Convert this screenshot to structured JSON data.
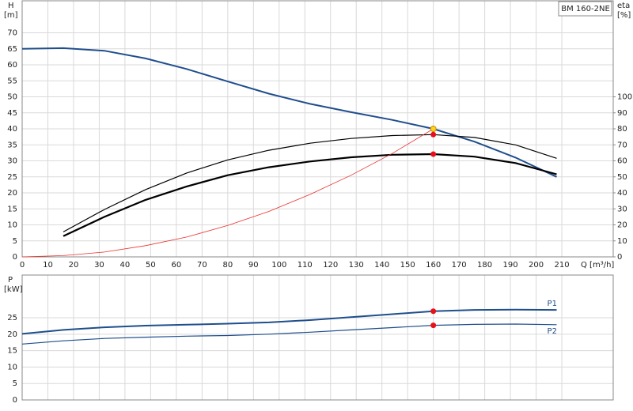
{
  "chart_data": [
    {
      "type": "line",
      "y_label": "H",
      "y_unit": "[m]",
      "y2_label": "eta",
      "y2_unit": "[%]",
      "x_label": "Q [m³/h]",
      "annotation": "BM 160-2NE",
      "xlim": [
        0,
        230
      ],
      "xticks": [
        0,
        10,
        20,
        30,
        40,
        50,
        60,
        70,
        80,
        90,
        100,
        110,
        120,
        130,
        140,
        150,
        160,
        170,
        180,
        190,
        200,
        210
      ],
      "ylim": [
        0,
        80
      ],
      "yticks": [
        0,
        5,
        10,
        15,
        20,
        25,
        30,
        35,
        40,
        45,
        50,
        55,
        60,
        65,
        70
      ],
      "y2lim": [
        0,
        160
      ],
      "y2ticks": [
        0,
        10,
        20,
        30,
        40,
        50,
        60,
        70,
        80,
        90,
        100
      ],
      "grid": true,
      "series": [
        {
          "color": "#1f4e8c",
          "width": 2,
          "x": [
            0,
            16,
            32,
            48,
            64,
            80,
            96,
            112,
            128,
            144,
            160,
            176,
            192,
            208
          ],
          "values": [
            65,
            65.2,
            64.4,
            62,
            58.7,
            54.8,
            51,
            47.8,
            45.2,
            42.8,
            40,
            36,
            31,
            25
          ]
        },
        {
          "color": "#000000",
          "width": 1.2,
          "axis": "y2",
          "x": [
            16,
            32,
            48,
            64,
            80,
            96,
            112,
            128,
            144,
            160,
            176,
            192,
            208
          ],
          "values": [
            15.6,
            29.6,
            42,
            52.4,
            60.6,
            66.6,
            71,
            74,
            75.8,
            76.4,
            74.6,
            70,
            61.6
          ]
        },
        {
          "color": "#000000",
          "width": 2.2,
          "axis": "y2",
          "x": [
            16,
            32,
            48,
            64,
            80,
            96,
            112,
            128,
            144,
            160,
            176,
            192,
            208
          ],
          "values": [
            13,
            25,
            35.6,
            44,
            51,
            56,
            59.6,
            62.2,
            63.8,
            64.2,
            62.6,
            58.6,
            51.6
          ]
        },
        {
          "color": "#e8302a",
          "width": 0.8,
          "x": [
            0,
            16,
            32,
            48,
            64,
            80,
            96,
            112,
            128,
            144,
            160
          ],
          "values": [
            0,
            0.4,
            1.5,
            3.5,
            6.2,
            9.8,
            14.2,
            19.5,
            25.5,
            32.3,
            40
          ]
        }
      ],
      "points": [
        {
          "x": 160,
          "y": 40,
          "color": "#ffd21f"
        },
        {
          "x": 160,
          "y": 76.4,
          "axis": "y2",
          "color": "#e8101a"
        },
        {
          "x": 160,
          "y": 64.2,
          "axis": "y2",
          "color": "#e8101a"
        }
      ]
    },
    {
      "type": "line",
      "y_label": "P",
      "y_unit": "[kW]",
      "xlim": [
        0,
        230
      ],
      "xticks": [
        0,
        10,
        20,
        30,
        40,
        50,
        60,
        70,
        80,
        90,
        100,
        110,
        120,
        130,
        140,
        150,
        160,
        170,
        180,
        190,
        200,
        210
      ],
      "ylim": [
        0,
        38
      ],
      "yticks": [
        0,
        5,
        10,
        15,
        20,
        25
      ],
      "grid": true,
      "series": [
        {
          "name": "P1",
          "color": "#1f4e8c",
          "width": 2,
          "x": [
            0,
            16,
            32,
            48,
            64,
            80,
            96,
            112,
            128,
            144,
            160,
            176,
            192,
            208
          ],
          "values": [
            20.1,
            21.3,
            22.1,
            22.6,
            22.9,
            23.2,
            23.6,
            24.3,
            25.2,
            26.1,
            27,
            27.4,
            27.5,
            27.4
          ]
        },
        {
          "name": "P2",
          "color": "#1f4e8c",
          "width": 1.2,
          "x": [
            0,
            16,
            32,
            48,
            64,
            80,
            96,
            112,
            128,
            144,
            160,
            176,
            192,
            208
          ],
          "values": [
            17,
            18,
            18.7,
            19.1,
            19.4,
            19.6,
            20,
            20.6,
            21.3,
            22,
            22.7,
            23,
            23.1,
            22.9
          ]
        }
      ],
      "points": [
        {
          "x": 160,
          "y": 27,
          "color": "#e8101a"
        },
        {
          "x": 160,
          "y": 22.7,
          "color": "#e8101a"
        }
      ]
    }
  ]
}
